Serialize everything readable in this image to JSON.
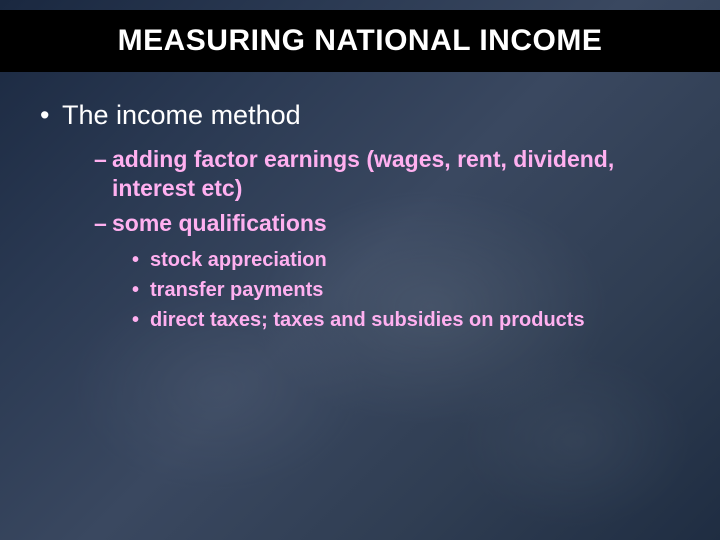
{
  "colors": {
    "title_bar_bg": "#000000",
    "title_text": "#ffffff",
    "level1_text": "#ffffff",
    "level2_text": "#ffb0f0",
    "level3_text": "#ffb0f0",
    "background_gradient": [
      "#1a2840",
      "#2a3952",
      "#3a4860",
      "#2f3d52",
      "#1f2d42"
    ]
  },
  "typography": {
    "title_fontsize": 30,
    "level1_fontsize": 27,
    "level2_fontsize": 23,
    "level3_fontsize": 20,
    "title_weight": "bold",
    "level1_weight": "normal",
    "level2_weight": "bold",
    "level3_weight": "bold"
  },
  "title": "MEASURING NATIONAL INCOME",
  "body": {
    "level1": "The income method",
    "level2_items": [
      "adding factor earnings (wages, rent, dividend, interest etc)",
      "some qualifications"
    ],
    "level3_items": [
      "stock appreciation",
      "transfer payments",
      "direct taxes; taxes and subsidies on products"
    ]
  }
}
